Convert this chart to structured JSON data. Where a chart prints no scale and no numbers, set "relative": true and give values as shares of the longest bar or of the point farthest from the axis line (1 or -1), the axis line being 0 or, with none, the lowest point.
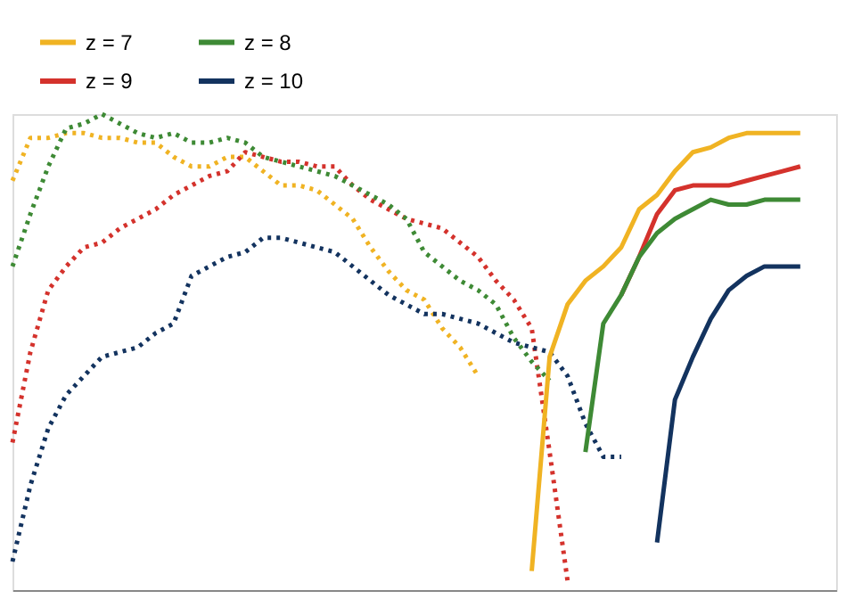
{
  "chart_data": {
    "type": "line",
    "relative": true,
    "legend": "top left",
    "categories": [
      null,
      null,
      null,
      null,
      null,
      null,
      null,
      null,
      null,
      null,
      null,
      null,
      null,
      null,
      null,
      null,
      null,
      null,
      null,
      null,
      null,
      null,
      null,
      null,
      null,
      null,
      null,
      null,
      null,
      null,
      null,
      null,
      null,
      null,
      null,
      null,
      null,
      null,
      null,
      null,
      null,
      null,
      null,
      null,
      null,
      null,
      null
    ],
    "series": [
      {
        "color": "#f0b323",
        "line_style": "dotted",
        "values": [
          0.86,
          0.95,
          0.95,
          0.96,
          0.96,
          0.95,
          0.95,
          0.94,
          0.94,
          0.91,
          0.89,
          0.89,
          0.91,
          0.91,
          0.88,
          0.85,
          0.85,
          0.84,
          0.81,
          0.78,
          0.72,
          0.67,
          0.63,
          0.61,
          0.55,
          0.51,
          0.45,
          null,
          null,
          null,
          null,
          null,
          null,
          null,
          null,
          null,
          null,
          null,
          null,
          null,
          null,
          null,
          null,
          null,
          null,
          null,
          null
        ]
      },
      {
        "color": "#d4322c",
        "line_style": "dotted",
        "values": [
          0.31,
          0.5,
          0.63,
          0.68,
          0.72,
          0.73,
          0.76,
          0.78,
          0.8,
          0.83,
          0.85,
          0.87,
          0.88,
          0.92,
          0.91,
          0.9,
          0.9,
          0.89,
          0.89,
          0.85,
          0.82,
          0.8,
          0.78,
          0.77,
          0.76,
          0.73,
          0.7,
          0.65,
          0.61,
          0.55,
          0.29,
          0.02,
          null,
          null,
          null,
          null,
          null,
          null,
          null,
          null,
          null,
          null,
          null,
          null,
          null,
          null,
          null
        ]
      },
      {
        "color": "#3e8a35",
        "line_style": "dotted",
        "values": [
          0.68,
          0.79,
          0.89,
          0.97,
          0.98,
          1.0,
          0.98,
          0.96,
          0.95,
          0.96,
          0.94,
          0.94,
          0.95,
          0.94,
          0.91,
          0.9,
          0.89,
          0.88,
          0.87,
          0.85,
          0.83,
          0.81,
          0.78,
          0.71,
          0.68,
          0.65,
          0.63,
          0.6,
          0.53,
          0.48,
          0.44,
          null,
          null,
          null,
          null,
          null,
          null,
          null,
          null,
          null,
          null,
          null,
          null,
          null,
          null,
          null,
          null
        ]
      },
      {
        "color": "#13335f",
        "line_style": "dotted",
        "values": [
          0.06,
          0.22,
          0.34,
          0.41,
          0.45,
          0.49,
          0.5,
          0.51,
          0.54,
          0.56,
          0.66,
          0.68,
          0.7,
          0.71,
          0.74,
          0.74,
          0.73,
          0.72,
          0.71,
          0.68,
          0.65,
          0.62,
          0.6,
          0.58,
          0.58,
          0.57,
          0.56,
          0.54,
          0.52,
          0.51,
          0.5,
          0.45,
          0.35,
          0.28,
          0.28,
          null,
          null,
          null,
          null,
          null,
          null,
          null,
          null,
          null,
          null,
          null,
          null
        ]
      },
      {
        "name": "z = 7",
        "color": "#f0b323",
        "line_style": "solid",
        "values": [
          null,
          null,
          null,
          null,
          null,
          null,
          null,
          null,
          null,
          null,
          null,
          null,
          null,
          null,
          null,
          null,
          null,
          null,
          null,
          null,
          null,
          null,
          null,
          null,
          null,
          null,
          null,
          null,
          null,
          0.04,
          0.49,
          0.6,
          0.65,
          0.68,
          0.72,
          0.8,
          0.83,
          0.88,
          0.92,
          0.93,
          0.95,
          0.96,
          0.96,
          0.96,
          0.96,
          null,
          null
        ]
      },
      {
        "name": "z = 9",
        "color": "#d4322c",
        "line_style": "solid",
        "values": [
          null,
          null,
          null,
          null,
          null,
          null,
          null,
          null,
          null,
          null,
          null,
          null,
          null,
          null,
          null,
          null,
          null,
          null,
          null,
          null,
          null,
          null,
          null,
          null,
          null,
          null,
          null,
          null,
          null,
          null,
          null,
          null,
          null,
          null,
          0.62,
          0.7,
          0.79,
          0.84,
          0.85,
          0.85,
          0.85,
          0.86,
          0.87,
          0.88,
          0.89,
          null,
          null
        ]
      },
      {
        "name": "z = 8",
        "color": "#3e8a35",
        "line_style": "solid",
        "values": [
          null,
          null,
          null,
          null,
          null,
          null,
          null,
          null,
          null,
          null,
          null,
          null,
          null,
          null,
          null,
          null,
          null,
          null,
          null,
          null,
          null,
          null,
          null,
          null,
          null,
          null,
          null,
          null,
          null,
          null,
          null,
          null,
          0.29,
          0.56,
          0.62,
          0.7,
          0.75,
          0.78,
          0.8,
          0.82,
          0.81,
          0.81,
          0.82,
          0.82,
          0.82,
          null,
          null
        ]
      },
      {
        "name": "z = 10",
        "color": "#13335f",
        "line_style": "solid",
        "values": [
          null,
          null,
          null,
          null,
          null,
          null,
          null,
          null,
          null,
          null,
          null,
          null,
          null,
          null,
          null,
          null,
          null,
          null,
          null,
          null,
          null,
          null,
          null,
          null,
          null,
          null,
          null,
          null,
          null,
          null,
          null,
          null,
          null,
          null,
          null,
          null,
          0.1,
          0.4,
          0.49,
          0.57,
          0.63,
          0.66,
          0.68,
          0.68,
          0.68,
          null,
          null
        ]
      }
    ]
  }
}
